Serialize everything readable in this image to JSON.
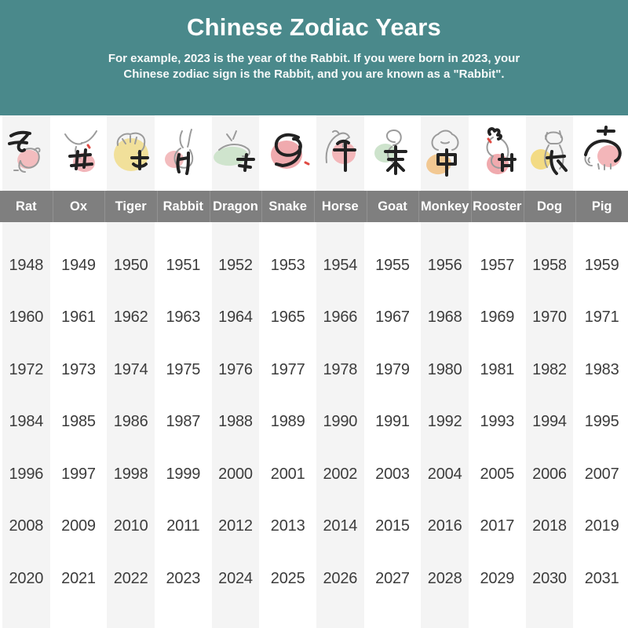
{
  "header": {
    "title": "Chinese Zodiac Years",
    "subtitle_line1": "For example, 2023 is the year of the Rabbit. If you were born in 2023, your",
    "subtitle_line2": "Chinese zodiac sign is the Rabbit, and you are known as a \"Rabbit\".",
    "background_color": "#4a898b",
    "text_color": "#ffffff"
  },
  "zodiac_table": {
    "name_bar_color": "#7f7f7f",
    "alt_column_color": "#f4f4f4",
    "year_text_color": "#3c3c3c",
    "columns": [
      {
        "name": "Rat",
        "zodiac_char": "子",
        "blob_color": "#f3bcbe",
        "years": [
          1948,
          1960,
          1972,
          1984,
          1996,
          2008,
          2020
        ]
      },
      {
        "name": "Ox",
        "zodiac_char": "丑",
        "blob_color": "#f2b6ba",
        "years": [
          1949,
          1961,
          1973,
          1985,
          1997,
          2009,
          2021
        ]
      },
      {
        "name": "Tiger",
        "zodiac_char": "寅",
        "blob_color": "#f1e09a",
        "years": [
          1950,
          1962,
          1974,
          1986,
          1998,
          2010,
          2022
        ]
      },
      {
        "name": "Rabbit",
        "zodiac_char": "卯",
        "blob_color": "#f3bcbe",
        "years": [
          1951,
          1963,
          1975,
          1987,
          1999,
          2011,
          2023
        ]
      },
      {
        "name": "Dragon",
        "zodiac_char": "辰",
        "blob_color": "#cfe4cd",
        "years": [
          1952,
          1964,
          1976,
          1988,
          2000,
          2012,
          2024
        ]
      },
      {
        "name": "Snake",
        "zodiac_char": "巳",
        "blob_color": "#f0aaae",
        "years": [
          1953,
          1965,
          1977,
          1989,
          2001,
          2013,
          2025
        ]
      },
      {
        "name": "Horse",
        "zodiac_char": "午",
        "blob_color": "#f3b6b9",
        "years": [
          1954,
          1966,
          1978,
          1990,
          2002,
          2014,
          2026
        ]
      },
      {
        "name": "Goat",
        "zodiac_char": "未",
        "blob_color": "#cde3cc",
        "years": [
          1955,
          1967,
          1979,
          1991,
          2003,
          2015,
          2027
        ]
      },
      {
        "name": "Monkey",
        "zodiac_char": "申",
        "blob_color": "#f2c892",
        "years": [
          1956,
          1968,
          1980,
          1992,
          2004,
          2016,
          2028
        ]
      },
      {
        "name": "Rooster",
        "zodiac_char": "酉",
        "blob_color": "#f0aaae",
        "years": [
          1957,
          1969,
          1981,
          1993,
          2005,
          2017,
          2029
        ]
      },
      {
        "name": "Dog",
        "zodiac_char": "戌",
        "blob_color": "#f3db84",
        "years": [
          1958,
          1970,
          1982,
          1994,
          2006,
          2018,
          2030
        ]
      },
      {
        "name": "Pig",
        "zodiac_char": "亥",
        "blob_color": "#f3b6b9",
        "years": [
          1959,
          1971,
          1983,
          1995,
          2007,
          2019,
          2031
        ]
      }
    ]
  },
  "chart_data": {
    "type": "table",
    "title": "Chinese Zodiac Years",
    "categories": [
      "Rat",
      "Ox",
      "Tiger",
      "Rabbit",
      "Dragon",
      "Snake",
      "Horse",
      "Goat",
      "Monkey",
      "Rooster",
      "Dog",
      "Pig"
    ],
    "rows": [
      [
        1948,
        1949,
        1950,
        1951,
        1952,
        1953,
        1954,
        1955,
        1956,
        1957,
        1958,
        1959
      ],
      [
        1960,
        1961,
        1962,
        1963,
        1964,
        1965,
        1966,
        1967,
        1968,
        1969,
        1970,
        1971
      ],
      [
        1972,
        1973,
        1974,
        1975,
        1976,
        1977,
        1978,
        1979,
        1980,
        1981,
        1982,
        1983
      ],
      [
        1984,
        1985,
        1986,
        1987,
        1988,
        1989,
        1990,
        1991,
        1992,
        1993,
        1994,
        1995
      ],
      [
        1996,
        1997,
        1998,
        1999,
        2000,
        2001,
        2002,
        2003,
        2004,
        2005,
        2006,
        2007
      ],
      [
        2008,
        2009,
        2010,
        2011,
        2012,
        2013,
        2014,
        2015,
        2016,
        2017,
        2018,
        2019
      ],
      [
        2020,
        2021,
        2022,
        2023,
        2024,
        2025,
        2026,
        2027,
        2028,
        2029,
        2030,
        2031
      ]
    ]
  }
}
